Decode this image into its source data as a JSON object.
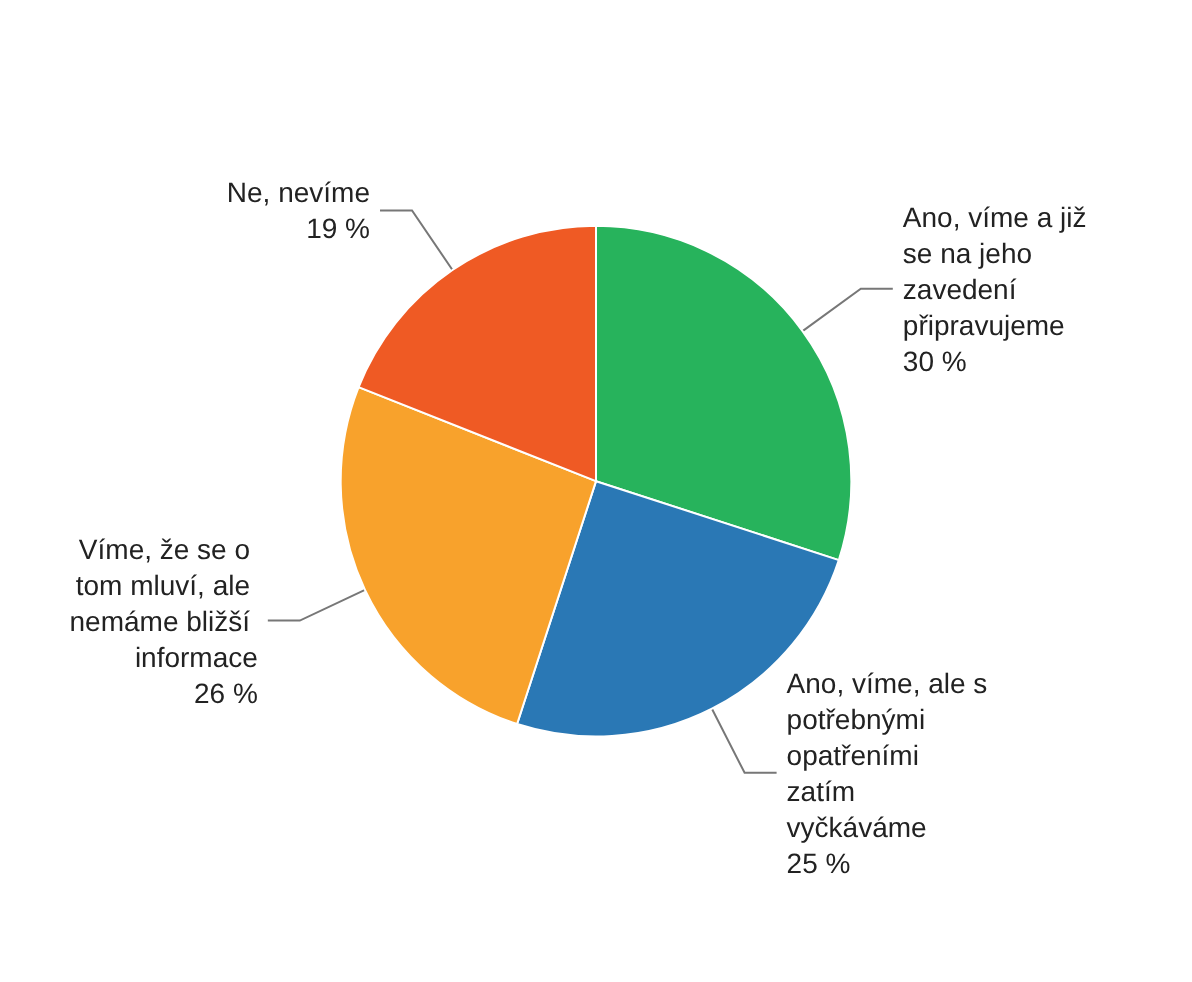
{
  "chart_data": {
    "type": "pie",
    "categories": [
      "Ano, víme a již se na jeho zavedení připravujeme",
      "Ano, víme, ale s potřebnými opatřeními zatím vyčkáváme",
      "Víme, že se o tom mluví, ale nemáme bližší informace",
      "Ne, nevíme"
    ],
    "values": [
      30,
      25,
      26,
      19
    ],
    "colors": [
      "#27b35c",
      "#2a78b5",
      "#f8a22c",
      "#ef5a24"
    ],
    "value_labels": [
      "30 %",
      "25 %",
      "26 %",
      "19 %"
    ],
    "legend": false
  }
}
